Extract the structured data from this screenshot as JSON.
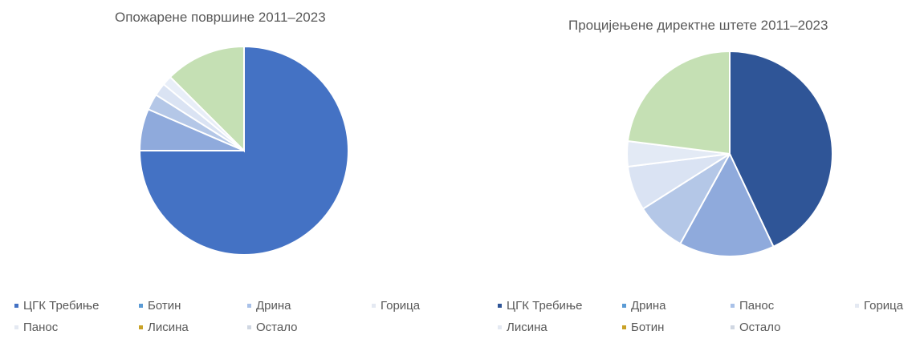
{
  "chart_data": [
    {
      "type": "pie",
      "title": "Опожарене површине 2011–2023",
      "slices": [
        {
          "label": "ЦГК Требиње",
          "value": 75.0,
          "color": "#4472C4"
        },
        {
          "label": "Ботин",
          "value": 6.5,
          "color": "#8FAADC"
        },
        {
          "label": "Дрина",
          "value": 2.5,
          "color": "#B4C7E7"
        },
        {
          "label": "Горица",
          "value": 2.0,
          "color": "#DAE3F3"
        },
        {
          "label": "Панос",
          "value": 1.5,
          "color": "#E8EEF8"
        },
        {
          "label": "Лисина",
          "value": 0.0,
          "color": "#F4B183"
        },
        {
          "label": "Остало",
          "value": 12.5,
          "color": "#C5E0B4"
        }
      ],
      "legend_position": "bottom",
      "legend": [
        {
          "label": "ЦГК Требиње",
          "color": "#4472C4"
        },
        {
          "label": "Ботин",
          "color": "#5B9BD5"
        },
        {
          "label": "Дрина",
          "color": "#A9C1E8"
        },
        {
          "label": "Горица",
          "color": "#E4E9F2"
        },
        {
          "label": "Панос",
          "color": "#E4E9F2"
        },
        {
          "label": "Лисина",
          "color": "#C9A227"
        },
        {
          "label": "Остало",
          "color": "#D0D7E2"
        }
      ]
    },
    {
      "type": "pie",
      "title": "Процијењене директне штете 2011–2023",
      "slices": [
        {
          "label": "ЦГК Требиње",
          "value": 43.0,
          "color": "#2F5597"
        },
        {
          "label": "Дрина",
          "value": 15.0,
          "color": "#8FAADC"
        },
        {
          "label": "Панос",
          "value": 8.0,
          "color": "#B4C7E7"
        },
        {
          "label": "Горица",
          "value": 7.0,
          "color": "#DAE3F3"
        },
        {
          "label": "Лисина",
          "value": 4.0,
          "color": "#E3EAF5"
        },
        {
          "label": "Ботин",
          "value": 0.0,
          "color": "#F4B183"
        },
        {
          "label": "Остало",
          "value": 23.0,
          "color": "#C5E0B4"
        }
      ],
      "legend_position": "bottom",
      "legend": [
        {
          "label": "ЦГК Требиње",
          "color": "#2F5597"
        },
        {
          "label": "Дрина",
          "color": "#5B9BD5"
        },
        {
          "label": "Панос",
          "color": "#A9C1E8"
        },
        {
          "label": "Горица",
          "color": "#E4E9F2"
        },
        {
          "label": "Лисина",
          "color": "#E4E9F2"
        },
        {
          "label": "Ботин",
          "color": "#C9A227"
        },
        {
          "label": "Остало",
          "color": "#D0D7E2"
        }
      ]
    }
  ]
}
